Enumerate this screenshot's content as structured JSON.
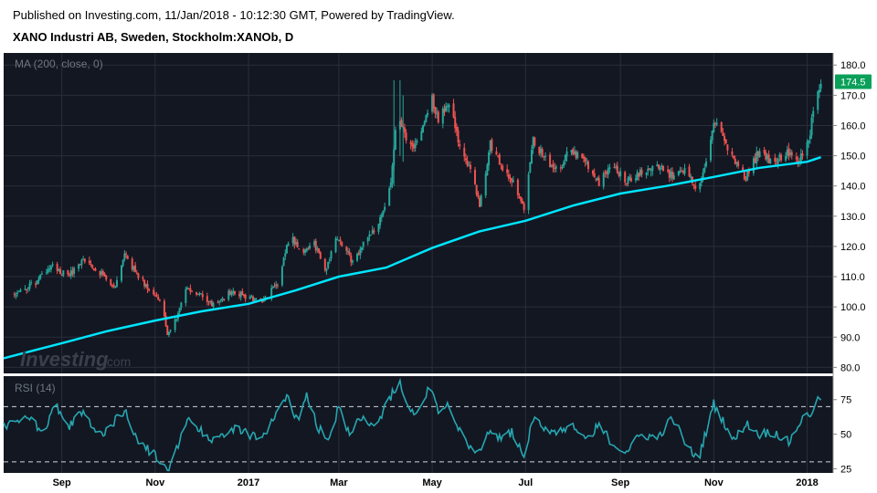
{
  "header": {
    "published": "Published on Investing.com, 11/Jan/2018 - 10:12:30 GMT, Powered by TradingView.",
    "symbol": "XANO Industri AB, Sweden, Stockholm:XANOb, D"
  },
  "watermark": {
    "brand": "Investing",
    "suffix": ".com"
  },
  "colors": {
    "background": "#131722",
    "up": "#26a69a",
    "down": "#ef5350",
    "ma": "#00e5ff",
    "rsi": "#26a6b0",
    "last_price_badge": "#0aa05a",
    "grid": "#2a2e39"
  },
  "chart_data": [
    {
      "type": "candlestick",
      "indicator_label": "MA (200, close, 0)",
      "ylim": [
        78,
        184
      ],
      "y_ticks": [
        "80.0",
        "90.0",
        "100.0",
        "110.0",
        "120.0",
        "130.0",
        "140.0",
        "150.0",
        "160.0",
        "170.0",
        "180.0"
      ],
      "last_price": "174.5",
      "x_ticks": [
        "Sep",
        "Nov",
        "2017",
        "Mar",
        "May",
        "Jul",
        "Sep",
        "Nov",
        "2018"
      ],
      "price_path": [
        [
          "2016-08-01",
          104
        ],
        [
          "2016-08-15",
          108
        ],
        [
          "2016-08-25",
          114
        ],
        [
          "2016-09-05",
          110
        ],
        [
          "2016-09-15",
          116
        ],
        [
          "2016-09-25",
          112
        ],
        [
          "2016-10-05",
          106
        ],
        [
          "2016-10-12",
          117
        ],
        [
          "2016-10-20",
          111
        ],
        [
          "2016-10-28",
          106
        ],
        [
          "2016-11-05",
          102
        ],
        [
          "2016-11-09",
          90
        ],
        [
          "2016-11-14",
          95
        ],
        [
          "2016-11-20",
          106
        ],
        [
          "2016-11-30",
          104
        ],
        [
          "2016-12-10",
          100
        ],
        [
          "2016-12-20",
          105
        ],
        [
          "2017-01-01",
          103
        ],
        [
          "2017-01-10",
          102
        ],
        [
          "2017-01-20",
          108
        ],
        [
          "2017-01-28",
          124
        ],
        [
          "2017-02-05",
          118
        ],
        [
          "2017-02-12",
          122
        ],
        [
          "2017-02-20",
          112
        ],
        [
          "2017-02-28",
          123
        ],
        [
          "2017-03-10",
          115
        ],
        [
          "2017-03-18",
          122
        ],
        [
          "2017-03-26",
          126
        ],
        [
          "2017-04-04",
          140
        ],
        [
          "2017-04-08",
          163
        ],
        [
          "2017-04-12",
          158
        ],
        [
          "2017-04-18",
          152
        ],
        [
          "2017-04-24",
          157
        ],
        [
          "2017-04-30",
          170
        ],
        [
          "2017-05-05",
          162
        ],
        [
          "2017-05-12",
          168
        ],
        [
          "2017-05-18",
          155
        ],
        [
          "2017-05-26",
          145
        ],
        [
          "2017-06-01",
          134
        ],
        [
          "2017-06-08",
          154
        ],
        [
          "2017-06-16",
          146
        ],
        [
          "2017-06-24",
          140
        ],
        [
          "2017-06-30",
          132
        ],
        [
          "2017-07-06",
          155
        ],
        [
          "2017-07-14",
          149
        ],
        [
          "2017-07-22",
          145
        ],
        [
          "2017-07-30",
          152
        ],
        [
          "2017-08-08",
          149
        ],
        [
          "2017-08-18",
          141
        ],
        [
          "2017-08-28",
          147
        ],
        [
          "2017-09-05",
          141
        ],
        [
          "2017-09-15",
          145
        ],
        [
          "2017-09-25",
          147
        ],
        [
          "2017-10-05",
          143
        ],
        [
          "2017-10-15",
          145
        ],
        [
          "2017-10-22",
          138
        ],
        [
          "2017-10-29",
          152
        ],
        [
          "2017-11-02",
          162
        ],
        [
          "2017-11-08",
          155
        ],
        [
          "2017-11-14",
          148
        ],
        [
          "2017-11-22",
          143
        ],
        [
          "2017-12-01",
          152
        ],
        [
          "2017-12-10",
          147
        ],
        [
          "2017-12-18",
          151
        ],
        [
          "2017-12-26",
          148
        ],
        [
          "2018-01-02",
          155
        ],
        [
          "2018-01-06",
          168
        ],
        [
          "2018-01-10",
          174.5
        ]
      ],
      "ma_path": [
        [
          "2016-07-25",
          83
        ],
        [
          "2016-09-01",
          88
        ],
        [
          "2016-10-01",
          92
        ],
        [
          "2016-11-01",
          95.5
        ],
        [
          "2016-12-01",
          98.5
        ],
        [
          "2017-01-01",
          101
        ],
        [
          "2017-02-01",
          105.5
        ],
        [
          "2017-03-01",
          110
        ],
        [
          "2017-04-01",
          113
        ],
        [
          "2017-05-01",
          119.5
        ],
        [
          "2017-06-01",
          125
        ],
        [
          "2017-07-01",
          128.5
        ],
        [
          "2017-08-01",
          133.5
        ],
        [
          "2017-09-01",
          137.5
        ],
        [
          "2017-10-01",
          140
        ],
        [
          "2017-11-01",
          143
        ],
        [
          "2017-12-01",
          146
        ],
        [
          "2018-01-01",
          148
        ],
        [
          "2018-01-10",
          149.5
        ]
      ]
    },
    {
      "type": "line",
      "indicator_label": "RSI (14)",
      "ylim": [
        22,
        92
      ],
      "y_ticks": [
        "25",
        "50",
        "75"
      ],
      "levels": [
        30,
        70
      ],
      "rsi_path": [
        [
          "2016-07-25",
          55
        ],
        [
          "2016-08-10",
          62
        ],
        [
          "2016-08-20",
          52
        ],
        [
          "2016-08-28",
          72
        ],
        [
          "2016-09-05",
          55
        ],
        [
          "2016-09-15",
          66
        ],
        [
          "2016-09-25",
          48
        ],
        [
          "2016-10-05",
          58
        ],
        [
          "2016-10-12",
          68
        ],
        [
          "2016-10-22",
          43
        ],
        [
          "2016-11-01",
          35
        ],
        [
          "2016-11-05",
          28
        ],
        [
          "2016-11-10",
          24
        ],
        [
          "2016-11-15",
          40
        ],
        [
          "2016-11-22",
          62
        ],
        [
          "2016-12-01",
          52
        ],
        [
          "2016-12-10",
          45
        ],
        [
          "2016-12-20",
          55
        ],
        [
          "2017-01-01",
          50
        ],
        [
          "2017-01-10",
          48
        ],
        [
          "2017-01-18",
          62
        ],
        [
          "2017-01-26",
          78
        ],
        [
          "2017-02-02",
          60
        ],
        [
          "2017-02-08",
          80
        ],
        [
          "2017-02-15",
          56
        ],
        [
          "2017-02-22",
          45
        ],
        [
          "2017-03-01",
          70
        ],
        [
          "2017-03-08",
          50
        ],
        [
          "2017-03-15",
          62
        ],
        [
          "2017-03-22",
          55
        ],
        [
          "2017-03-30",
          66
        ],
        [
          "2017-04-06",
          82
        ],
        [
          "2017-04-10",
          88
        ],
        [
          "2017-04-14",
          70
        ],
        [
          "2017-04-20",
          65
        ],
        [
          "2017-04-26",
          78
        ],
        [
          "2017-04-30",
          85
        ],
        [
          "2017-05-06",
          65
        ],
        [
          "2017-05-12",
          72
        ],
        [
          "2017-05-18",
          56
        ],
        [
          "2017-05-25",
          42
        ],
        [
          "2017-06-01",
          36
        ],
        [
          "2017-06-08",
          55
        ],
        [
          "2017-06-15",
          45
        ],
        [
          "2017-06-22",
          52
        ],
        [
          "2017-06-30",
          35
        ],
        [
          "2017-07-06",
          62
        ],
        [
          "2017-07-14",
          55
        ],
        [
          "2017-07-22",
          50
        ],
        [
          "2017-07-30",
          58
        ],
        [
          "2017-08-08",
          46
        ],
        [
          "2017-08-18",
          56
        ],
        [
          "2017-08-28",
          42
        ],
        [
          "2017-09-05",
          38
        ],
        [
          "2017-09-15",
          50
        ],
        [
          "2017-09-25",
          47
        ],
        [
          "2017-10-05",
          62
        ],
        [
          "2017-10-15",
          40
        ],
        [
          "2017-10-22",
          32
        ],
        [
          "2017-10-29",
          60
        ],
        [
          "2017-11-01",
          72
        ],
        [
          "2017-11-08",
          58
        ],
        [
          "2017-11-14",
          45
        ],
        [
          "2017-11-22",
          58
        ],
        [
          "2017-12-01",
          50
        ],
        [
          "2017-12-10",
          52
        ],
        [
          "2017-12-20",
          44
        ],
        [
          "2017-12-28",
          60
        ],
        [
          "2018-01-03",
          65
        ],
        [
          "2018-01-10",
          77
        ]
      ]
    }
  ]
}
